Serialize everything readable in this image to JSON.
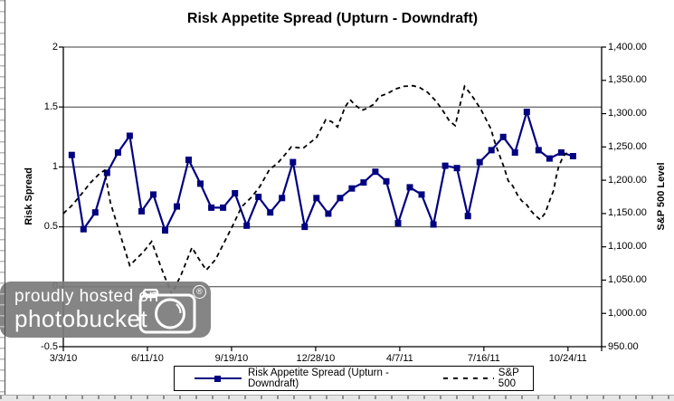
{
  "chart_data": {
    "type": "line",
    "title": "Risk Appetite Spread (Upturn - Downdraft)",
    "left_axis": {
      "label": "Risk Spread",
      "min": -0.5,
      "max": 2,
      "tick_values": [
        2,
        1.5,
        1,
        0.5,
        0,
        -0.5
      ],
      "tick_labels": [
        "2",
        "1.5",
        "1",
        "0.5",
        "0",
        "-0.5"
      ]
    },
    "right_axis": {
      "label": "S&P 500 Level",
      "min": 950,
      "max": 1400,
      "tick_values": [
        1400,
        1350,
        1300,
        1250,
        1200,
        1150,
        1100,
        1050,
        1000,
        950
      ],
      "tick_labels": [
        "1,400.00",
        "1,350.00",
        "1,300.00",
        "1,250.00",
        "1,200.00",
        "1,150.00",
        "1,100.00",
        "1,050.00",
        "1,000.00",
        "950.00"
      ]
    },
    "x_axis": {
      "unit": "days since 3/3/10",
      "t_max": 640,
      "tick_t": [
        0,
        100,
        200,
        300,
        400,
        500,
        600
      ],
      "tick_labels": [
        "3/3/10",
        "6/11/10",
        "9/19/10",
        "12/28/10",
        "4/7/11",
        "7/16/11",
        "10/24/11"
      ]
    },
    "grid": "horizontal-only",
    "legend_position": "bottom",
    "series": [
      {
        "name": "Risk Appetite Spread (Upturn - Downdraft)",
        "axis": "left",
        "style": "solid-with-square-markers",
        "color": "#000080",
        "t": [
          10,
          24,
          38,
          52,
          65,
          79,
          93,
          107,
          121,
          135,
          149,
          163,
          176,
          190,
          204,
          218,
          232,
          246,
          260,
          273,
          287,
          301,
          315,
          329,
          343,
          357,
          371,
          384,
          398,
          412,
          426,
          440,
          454,
          468,
          481,
          495,
          509,
          523,
          537,
          551,
          565,
          578,
          592,
          606
        ],
        "values": [
          1.1,
          0.48,
          0.62,
          0.95,
          1.12,
          1.26,
          0.63,
          0.77,
          0.47,
          0.67,
          1.06,
          0.86,
          0.66,
          0.66,
          0.78,
          0.51,
          0.75,
          0.62,
          0.74,
          1.04,
          0.5,
          0.74,
          0.61,
          0.74,
          0.82,
          0.87,
          0.96,
          0.88,
          0.53,
          0.83,
          0.77,
          0.52,
          1.01,
          0.99,
          0.59,
          1.04,
          1.14,
          1.25,
          1.12,
          1.46,
          1.14,
          1.07,
          1.12,
          1.09
        ]
      },
      {
        "name": "S&P 500",
        "axis": "right",
        "style": "dashed",
        "color": "#000000",
        "t": [
          0,
          11,
          22,
          32,
          43,
          49,
          56,
          68,
          79,
          86,
          95,
          105,
          116,
          123,
          129,
          140,
          153,
          161,
          170,
          181,
          191,
          201,
          212,
          224,
          234,
          245,
          255,
          266,
          271,
          285,
          301,
          312,
          319,
          326,
          335,
          341,
          346,
          355,
          361,
          369,
          376,
          385,
          395,
          405,
          416,
          424,
          433,
          443,
          452,
          459,
          466,
          472,
          477,
          484,
          489,
          497,
          508,
          514,
          524,
          529,
          534,
          540,
          545,
          551,
          556,
          561,
          567,
          573,
          579,
          583,
          586,
          589,
          593,
          596,
          599
        ],
        "values": [
          1150,
          1163,
          1180,
          1196,
          1210,
          1215,
          1166,
          1117,
          1072,
          1081,
          1092,
          1108,
          1070,
          1047,
          1029,
          1058,
          1099,
          1082,
          1065,
          1081,
          1106,
          1131,
          1160,
          1175,
          1191,
          1216,
          1226,
          1242,
          1250,
          1248,
          1264,
          1291,
          1288,
          1280,
          1310,
          1321,
          1314,
          1305,
          1308,
          1314,
          1326,
          1330,
          1337,
          1341,
          1342,
          1339,
          1332,
          1319,
          1303,
          1289,
          1282,
          1315,
          1341,
          1330,
          1321,
          1305,
          1278,
          1253,
          1219,
          1199,
          1192,
          1178,
          1169,
          1163,
          1154,
          1147,
          1141,
          1151,
          1172,
          1185,
          1205,
          1221,
          1232,
          1238,
          1241
        ]
      }
    ]
  },
  "legend": {
    "item1": "Risk Appetite Spread (Upturn - Downdraft)",
    "item2": "S&P 500"
  },
  "watermark": {
    "line1": "proudly hosted on",
    "line2": "photobucket",
    "registered": "®"
  },
  "colors": {
    "risk_line": "#000080",
    "sp500_line": "#000000",
    "watermark_bg": "#7b7b7b",
    "watermark_text": "#ffffff"
  }
}
